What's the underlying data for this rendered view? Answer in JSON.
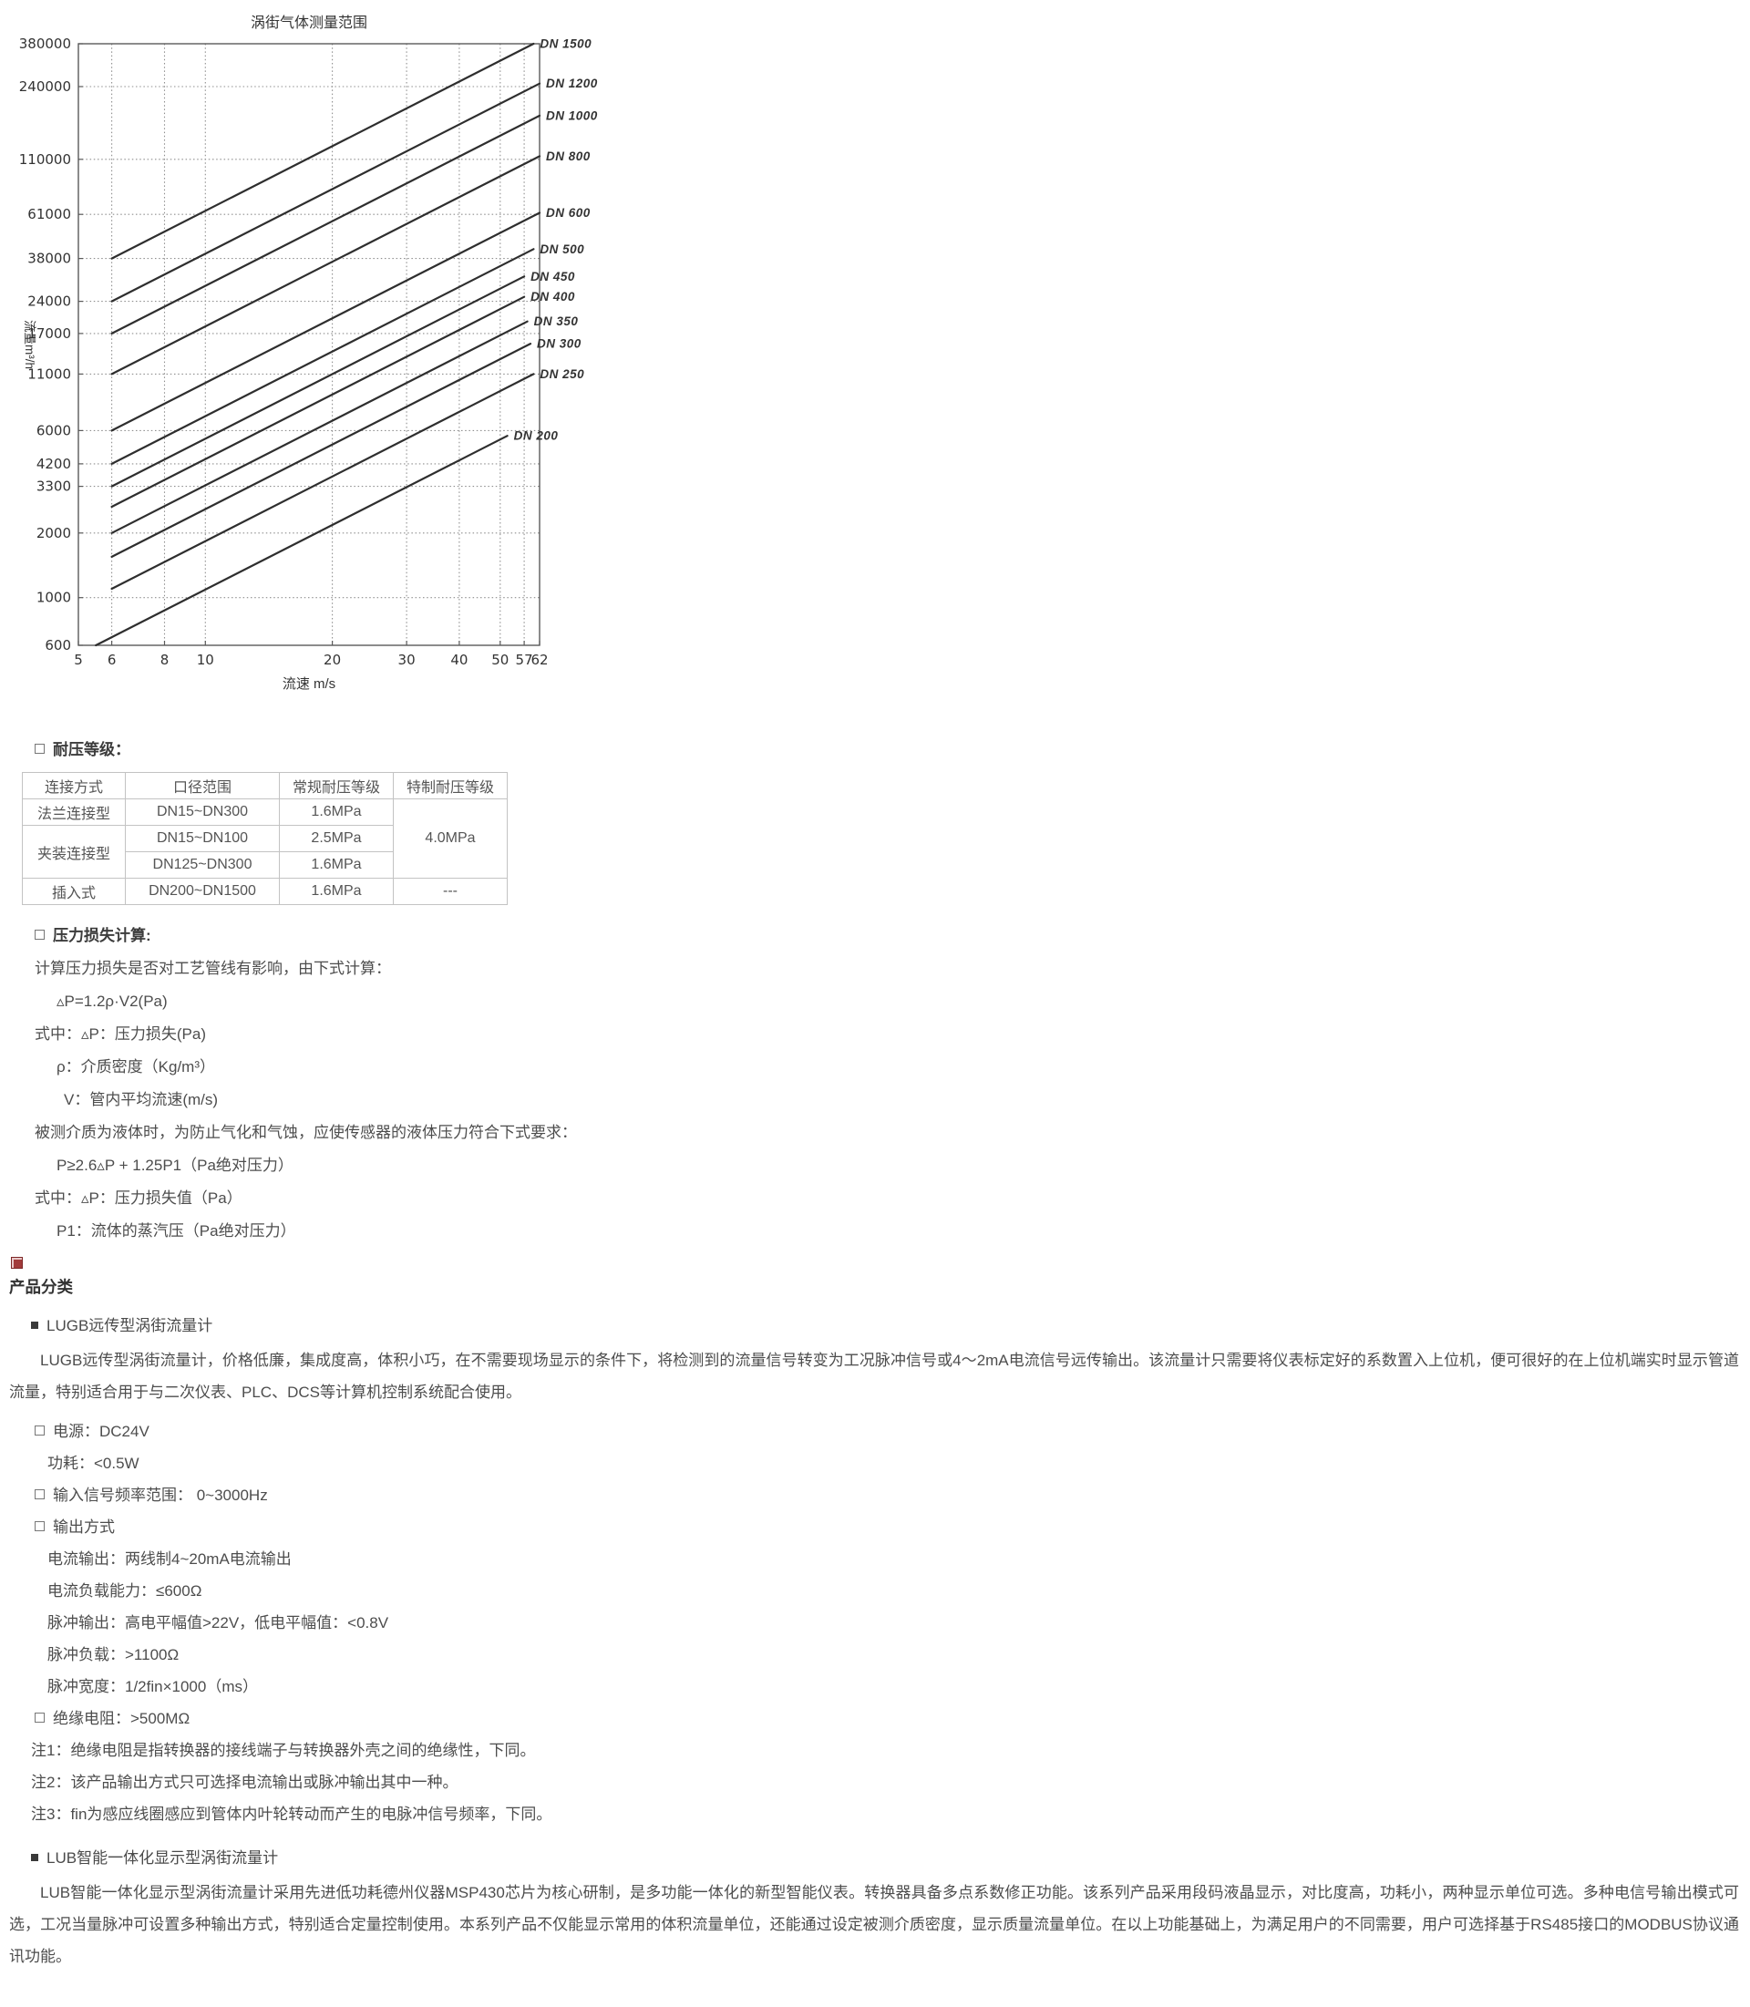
{
  "page": {
    "background": "#ffffff",
    "text_color": "#4d4d4d"
  },
  "chart_data": {
    "type": "line",
    "title": "涡街气体测量范围",
    "xlabel": "流速 m/s",
    "ylabel": "流量m³/h",
    "x_scale": "log",
    "y_scale": "log",
    "xlim": [
      5,
      62
    ],
    "ylim": [
      600,
      380000
    ],
    "x_ticks": [
      5,
      6,
      8,
      10,
      20,
      30,
      40,
      50,
      57,
      62
    ],
    "y_ticks": [
      600,
      1000,
      2000,
      3300,
      4200,
      6000,
      11000,
      17000,
      24000,
      38000,
      61000,
      110000,
      240000,
      380000
    ],
    "grid": "dotted",
    "legend_position": "right-of-line-ends",
    "line_color": "#2e2e2e",
    "series": [
      {
        "name": "DN 1500",
        "v": [
          6,
          60
        ],
        "q": [
          38000,
          380000
        ]
      },
      {
        "name": "DN 1200",
        "v": [
          6,
          62
        ],
        "q": [
          24000,
          248000
        ]
      },
      {
        "name": "DN 1000",
        "v": [
          6,
          62
        ],
        "q": [
          17000,
          175700
        ]
      },
      {
        "name": "DN 800",
        "v": [
          6,
          62
        ],
        "q": [
          11000,
          113700
        ]
      },
      {
        "name": "DN 600",
        "v": [
          6,
          62
        ],
        "q": [
          6000,
          62000
        ]
      },
      {
        "name": "DN 500",
        "v": [
          6,
          60
        ],
        "q": [
          4200,
          42000
        ]
      },
      {
        "name": "DN 450",
        "v": [
          6,
          57
        ],
        "q": [
          3300,
          31350
        ]
      },
      {
        "name": "DN 400",
        "v": [
          6,
          57
        ],
        "q": [
          2650,
          25180
        ]
      },
      {
        "name": "DN 350",
        "v": [
          6,
          58
        ],
        "q": [
          2000,
          19330
        ]
      },
      {
        "name": "DN 300",
        "v": [
          6,
          59
        ],
        "q": [
          1550,
          15240
        ]
      },
      {
        "name": "DN 250",
        "v": [
          6,
          60
        ],
        "q": [
          1100,
          11000
        ]
      },
      {
        "name": "DN 200",
        "v": [
          5.5,
          52
        ],
        "q": [
          600,
          5670
        ]
      }
    ]
  },
  "pressure_rating": {
    "title": "耐压等级：",
    "table": {
      "headers": [
        "连接方式",
        "口径范围",
        "常规耐压等级",
        "特制耐压等级"
      ],
      "cells": {
        "flange_type": "法兰连接型",
        "flange_range": "DN15~DN300",
        "flange_rating": "1.6MPa",
        "special_rating": "4.0MPa",
        "clamp_type": "夹装连接型",
        "clamp_range_1": "DN15~DN100",
        "clamp_rating_1": "2.5MPa",
        "clamp_range_2": "DN125~DN300",
        "clamp_rating_2": "1.6MPa",
        "insert_type": "插入式",
        "insert_range": "DN200~DN1500",
        "insert_rating": "1.6MPa",
        "insert_special": "---"
      }
    }
  },
  "pressure_loss": {
    "title": "压力损失计算:",
    "lines": [
      {
        "indent": 0,
        "text": "计算压力损失是否对工艺管线有影响，由下式计算："
      },
      {
        "indent": 2,
        "text": "▵P=1.2ρ·V2(Pa)"
      },
      {
        "indent": 0,
        "text": "式中：▵P：压力损失(Pa)"
      },
      {
        "indent": 2,
        "text": "ρ：介质密度（Kg/m³）"
      },
      {
        "indent": 3,
        "text": "V：管内平均流速(m/s)"
      },
      {
        "indent": 0,
        "text": "被测介质为液体时，为防止气化和气蚀，应使传感器的液体压力符合下式要求："
      },
      {
        "indent": 2,
        "text": "P≥2.6▵P + 1.25P1（Pa绝对压力）"
      },
      {
        "indent": 0,
        "text": "式中：▵P：压力损失值（Pa）"
      },
      {
        "indent": 2,
        "text": "P1：流体的蒸汽压（Pa绝对压力）"
      }
    ]
  },
  "product_category": {
    "heading": "产品分类",
    "lugb": {
      "title": "LUGB远传型涡街流量计",
      "description": "LUGB远传型涡街流量计，价格低廉，集成度高，体积小巧，在不需要现场显示的条件下，将检测到的流量信号转变为工况脉冲信号或4～2mA电流信号远传输出。该流量计只需要将仪表标定好的系数置入上位机，便可很好的在上位机端实时显示管道流量，特别适合用于与二次仪表、PLC、DCS等计算机控制系统配合使用。",
      "specs": [
        {
          "square": true,
          "indent": 0,
          "text": "电源：DC24V"
        },
        {
          "square": false,
          "indent": 1,
          "text": "功耗：<0.5W"
        },
        {
          "square": true,
          "indent": 0,
          "text": "输入信号频率范围： 0~3000Hz"
        },
        {
          "square": true,
          "indent": 0,
          "text": "输出方式"
        },
        {
          "square": false,
          "indent": 1,
          "text": "电流输出：两线制4~20mA电流输出"
        },
        {
          "square": false,
          "indent": 1,
          "text": "电流负载能力：≤600Ω"
        },
        {
          "square": false,
          "indent": 1,
          "text": "脉冲输出：高电平幅值>22V，低电平幅值：<0.8V"
        },
        {
          "square": false,
          "indent": 1,
          "text": "脉冲负载：>1100Ω"
        },
        {
          "square": false,
          "indent": 1,
          "text": "脉冲宽度：1/2fin×1000（ms）"
        },
        {
          "square": true,
          "indent": 0,
          "text": "绝缘电阻：>500MΩ"
        }
      ],
      "notes": [
        "注1：绝缘电阻是指转换器的接线端子与转换器外壳之间的绝缘性，下同。",
        "注2：该产品输出方式只可选择电流输出或脉冲输出其中一种。",
        "注3：fin为感应线圈感应到管体内叶轮转动而产生的电脉冲信号频率，下同。"
      ]
    },
    "lub": {
      "title": "LUB智能一体化显示型涡街流量计",
      "description": "LUB智能一体化显示型涡街流量计采用先进低功耗德州仪器MSP430芯片为核心研制，是多功能一体化的新型智能仪表。转换器具备多点系数修正功能。该系列产品采用段码液晶显示，对比度高，功耗小，两种显示单位可选。多种电信号输出模式可选，工况当量脉冲可设置多种输出方式，特别适合定量控制使用。本系列产品不仅能显示常用的体积流量单位，还能通过设定被测介质密度，显示质量流量单位。在以上功能基础上，为满足用户的不同需要，用户可选择基于RS485接口的MODBUS协议通讯功能。"
    }
  }
}
